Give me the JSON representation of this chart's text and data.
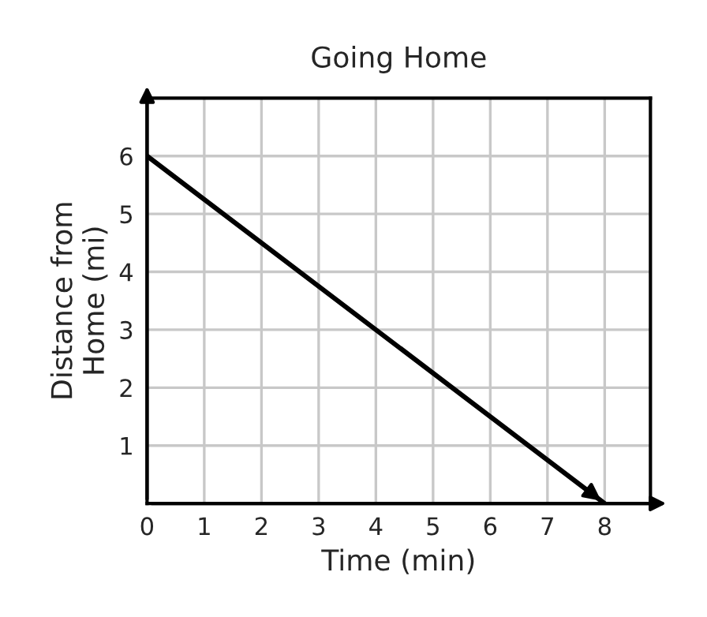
{
  "chart_data": {
    "type": "line",
    "title": "Going Home",
    "xlabel": "Time (min)",
    "ylabel": "Distance from\nHome (mi)",
    "x": [
      0,
      8
    ],
    "series": [
      {
        "color": "#000000",
        "values": [
          6,
          0
        ]
      }
    ],
    "xlim": [
      0,
      8.8
    ],
    "ylim": [
      0,
      7
    ],
    "xticks": [
      0,
      1,
      2,
      3,
      4,
      5,
      6,
      7,
      8
    ],
    "yticks": [
      {
        "value": 0,
        "label": null
      },
      1,
      2,
      3,
      4,
      5,
      6
    ],
    "grid": true,
    "marker": "none",
    "line_style": "solid",
    "legend": false
  }
}
